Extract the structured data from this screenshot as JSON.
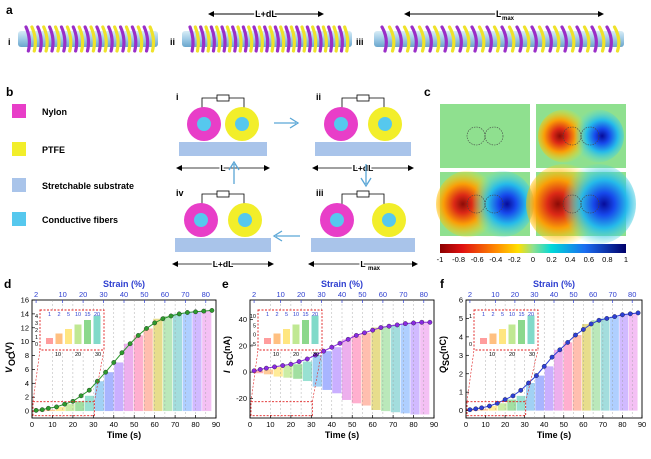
{
  "panels": {
    "a": {
      "label": "a",
      "sub": [
        "i",
        "ii",
        "iii"
      ],
      "len_labels": [
        "L+dL",
        "L"
      ],
      "len_sub": "max"
    },
    "b": {
      "label": "b",
      "legend": [
        {
          "text": "Nylon",
          "color": "#e83ec8"
        },
        {
          "text": "PTFE",
          "color": "#f2ee2a"
        },
        {
          "text": "Stretchable substrate",
          "color": "#a9c4ea"
        },
        {
          "text": "Conductive fibers",
          "color": "#56c8ee"
        }
      ],
      "steps": [
        {
          "roman": "i",
          "len": "L"
        },
        {
          "roman": "ii",
          "len": "L+dL"
        },
        {
          "roman": "iii",
          "len": "L",
          "sub": "max"
        },
        {
          "roman": "iv",
          "len": "L+dL"
        }
      ]
    },
    "c": {
      "label": "c",
      "colorbar_ticks": [
        "-1",
        "-0.8",
        "-0.6",
        "-0.4",
        "-0.2",
        "0",
        "0.2",
        "0.4",
        "0.6",
        "0.8",
        "1"
      ]
    },
    "d": {
      "label": "d"
    },
    "e": {
      "label": "e"
    },
    "f": {
      "label": "f"
    }
  },
  "chart_data": [
    {
      "type": "line",
      "panel": "d",
      "xlabel": "Time (s)",
      "ylabel": "V",
      "ylabel_sub": "OC",
      "ylabel_unit": "(V)",
      "top_axis_label": "Strain (%)",
      "top_ticks": [
        "2",
        "10",
        "20",
        "30",
        "40",
        "50",
        "60",
        "70",
        "80"
      ],
      "xticks": [
        "0",
        "10",
        "20",
        "30",
        "40",
        "50",
        "60",
        "70",
        "80",
        "90"
      ],
      "yticks": [
        "0",
        "2",
        "4",
        "6",
        "8",
        "10",
        "12",
        "14",
        "16"
      ],
      "xlim": [
        0,
        90
      ],
      "ylim": [
        -1,
        16
      ],
      "marker_color": "#2e9a2e",
      "x": [
        2,
        5,
        8,
        12,
        16,
        20,
        24,
        28,
        32,
        36,
        40,
        44,
        48,
        52,
        56,
        60,
        64,
        68,
        72,
        76,
        80,
        84,
        88
      ],
      "y": [
        0.1,
        0.2,
        0.4,
        0.6,
        1.0,
        1.4,
        2.2,
        3.0,
        4.3,
        5.6,
        7.0,
        8.4,
        9.7,
        10.9,
        11.9,
        12.7,
        13.3,
        13.7,
        14.0,
        14.2,
        14.3,
        14.4,
        14.5
      ],
      "inset": {
        "xticks": [
          "1",
          "2",
          "5",
          "10",
          "15",
          "20"
        ],
        "yticks": [
          "0",
          "1",
          "2",
          "3",
          "4"
        ],
        "xaxis": [
          "10",
          "20",
          "30"
        ]
      }
    },
    {
      "type": "line",
      "panel": "e",
      "xlabel": "Time (s)",
      "ylabel": "I",
      "ylabel_sub": "SC",
      "ylabel_unit": "(nA)",
      "top_axis_label": "Strain (%)",
      "top_ticks": [
        "2",
        "10",
        "20",
        "30",
        "40",
        "50",
        "60",
        "70",
        "80"
      ],
      "xticks": [
        "0",
        "10",
        "20",
        "30",
        "40",
        "50",
        "60",
        "70",
        "80",
        "90"
      ],
      "yticks": [
        "-20",
        "0",
        "20",
        "40"
      ],
      "xlim": [
        0,
        90
      ],
      "ylim": [
        -35,
        55
      ],
      "marker_color": "#8a2be2",
      "x": [
        2,
        5,
        8,
        12,
        16,
        20,
        24,
        28,
        32,
        36,
        40,
        44,
        48,
        52,
        56,
        60,
        64,
        68,
        72,
        76,
        80,
        84,
        88
      ],
      "y": [
        1,
        2,
        3,
        4,
        5,
        6,
        8,
        10,
        13,
        16,
        19,
        22,
        25,
        28,
        30,
        32,
        34,
        35,
        36,
        37,
        37.5,
        38,
        38
      ],
      "inset": {
        "xticks": [
          "1",
          "2",
          "5",
          "10",
          "15",
          "20"
        ],
        "yticks": [
          "-5",
          "0",
          "5",
          "10"
        ],
        "xaxis": [
          "10",
          "20",
          "30"
        ]
      }
    },
    {
      "type": "line",
      "panel": "f",
      "xlabel": "Time (s)",
      "ylabel": "Q",
      "ylabel_sub": "SC",
      "ylabel_unit": "(nC)",
      "top_axis_label": "Strain (%)",
      "top_ticks": [
        "2",
        "10",
        "20",
        "30",
        "40",
        "50",
        "60",
        "70",
        "80"
      ],
      "xticks": [
        "0",
        "10",
        "20",
        "30",
        "40",
        "50",
        "60",
        "70",
        "80",
        "90"
      ],
      "yticks": [
        "0",
        "1",
        "2",
        "3",
        "4",
        "5",
        "6"
      ],
      "xlim": [
        0,
        90
      ],
      "ylim": [
        -0.4,
        6
      ],
      "marker_color": "#2d3fd6",
      "x": [
        2,
        5,
        8,
        12,
        16,
        20,
        24,
        28,
        32,
        36,
        40,
        44,
        48,
        52,
        56,
        60,
        64,
        68,
        72,
        76,
        80,
        84,
        88
      ],
      "y": [
        0.05,
        0.1,
        0.15,
        0.25,
        0.4,
        0.6,
        0.8,
        1.1,
        1.5,
        1.9,
        2.4,
        2.9,
        3.3,
        3.7,
        4.1,
        4.4,
        4.7,
        4.9,
        5.0,
        5.1,
        5.2,
        5.25,
        5.3
      ],
      "inset": {
        "xticks": [
          "1",
          "2",
          "5",
          "10",
          "15",
          "20"
        ],
        "yticks": [
          "0",
          "1"
        ],
        "xaxis": [
          "10",
          "20",
          "30"
        ]
      }
    }
  ]
}
